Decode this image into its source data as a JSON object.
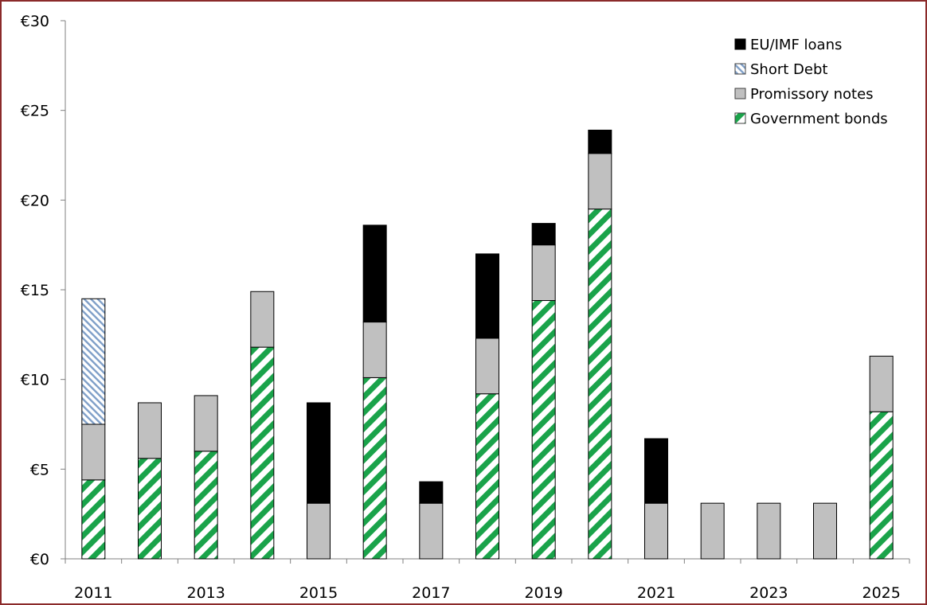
{
  "chart_data": {
    "type": "bar",
    "stacked": true,
    "categories": [
      "2011",
      "2012",
      "2013",
      "2014",
      "2015",
      "2016",
      "2017",
      "2018",
      "2019",
      "2020",
      "2021",
      "2022",
      "2023",
      "2024",
      "2025"
    ],
    "x_tick_labels": [
      "2011",
      "",
      "2013",
      "",
      "2015",
      "",
      "2017",
      "",
      "2019",
      "",
      "2021",
      "",
      "2023",
      "",
      "2025"
    ],
    "y_tick_labels": [
      "€0",
      "€5",
      "€10",
      "€15",
      "€20",
      "€25",
      "€30"
    ],
    "ylim": [
      0,
      30
    ],
    "y_step": 5,
    "grid": false,
    "legend_position": "top-right",
    "series": [
      {
        "name": "Government bonds",
        "color": "#1aa34a",
        "pattern": "diagonal-stripes-green",
        "values": [
          4.4,
          5.6,
          6.0,
          11.8,
          0,
          10.1,
          0,
          9.2,
          14.4,
          19.5,
          0,
          0,
          0,
          0,
          8.2
        ]
      },
      {
        "name": "Promissory notes",
        "color": "#c0c0c0",
        "pattern": "solid",
        "values": [
          3.1,
          3.1,
          3.1,
          3.1,
          3.1,
          3.1,
          3.1,
          3.1,
          3.1,
          3.1,
          3.1,
          3.1,
          3.1,
          3.1,
          3.1
        ]
      },
      {
        "name": "Short Debt",
        "color": "#7f9fc8",
        "pattern": "diagonal-hatch-blue",
        "values": [
          7.0,
          0,
          0,
          0,
          0,
          0,
          0,
          0,
          0,
          0,
          0,
          0,
          0,
          0,
          0
        ]
      },
      {
        "name": "EU/IMF loans",
        "color": "#000000",
        "pattern": "solid",
        "values": [
          0,
          0,
          0,
          0,
          5.6,
          5.4,
          1.2,
          4.7,
          1.2,
          1.3,
          3.6,
          0,
          0,
          0,
          0
        ]
      }
    ],
    "legend_order": [
      "EU/IMF loans",
      "Short Debt",
      "Promissory notes",
      "Government bonds"
    ]
  }
}
